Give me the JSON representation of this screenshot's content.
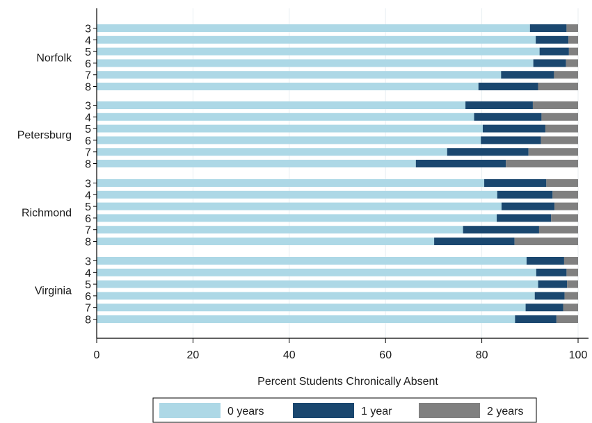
{
  "chart_data": {
    "type": "bar",
    "orientation": "horizontal",
    "stacked": true,
    "xlabel": "Percent Students Chronically Absent",
    "xlim": [
      0,
      100
    ],
    "xticks": [
      0,
      20,
      40,
      60,
      80,
      100
    ],
    "grid": true,
    "legend_position": "bottom",
    "groups": [
      {
        "name": "Norfolk",
        "grades": [
          "3",
          "4",
          "5",
          "6",
          "7",
          "8"
        ]
      },
      {
        "name": "Petersburg",
        "grades": [
          "3",
          "4",
          "5",
          "6",
          "7",
          "8"
        ]
      },
      {
        "name": "Richmond",
        "grades": [
          "3",
          "4",
          "5",
          "6",
          "7",
          "8"
        ]
      },
      {
        "name": "Virginia",
        "grades": [
          "3",
          "4",
          "5",
          "6",
          "7",
          "8"
        ]
      }
    ],
    "series": [
      {
        "name": "0 years",
        "color": "#add8e6",
        "values": [
          90.0,
          91.2,
          92.0,
          90.7,
          84.0,
          79.3,
          76.6,
          78.4,
          80.2,
          79.8,
          72.8,
          66.3,
          80.5,
          83.2,
          84.1,
          83.1,
          76.1,
          70.1,
          89.3,
          91.3,
          91.7,
          91.0,
          89.1,
          86.9
        ]
      },
      {
        "name": "1 year",
        "color": "#1a476f",
        "values": [
          7.6,
          6.8,
          6.1,
          6.8,
          11.0,
          12.4,
          14.0,
          14.0,
          13.0,
          12.5,
          16.9,
          18.7,
          12.9,
          11.5,
          11.0,
          11.3,
          15.8,
          16.7,
          7.8,
          6.3,
          6.0,
          6.2,
          7.8,
          8.6
        ]
      },
      {
        "name": "2 years",
        "color": "#808080",
        "values": [
          2.4,
          2.0,
          1.9,
          2.5,
          5.0,
          8.3,
          9.4,
          7.6,
          6.8,
          7.7,
          10.3,
          15.0,
          6.6,
          5.3,
          4.9,
          5.6,
          8.1,
          13.2,
          2.9,
          2.4,
          2.3,
          2.8,
          3.1,
          4.5
        ]
      }
    ]
  }
}
